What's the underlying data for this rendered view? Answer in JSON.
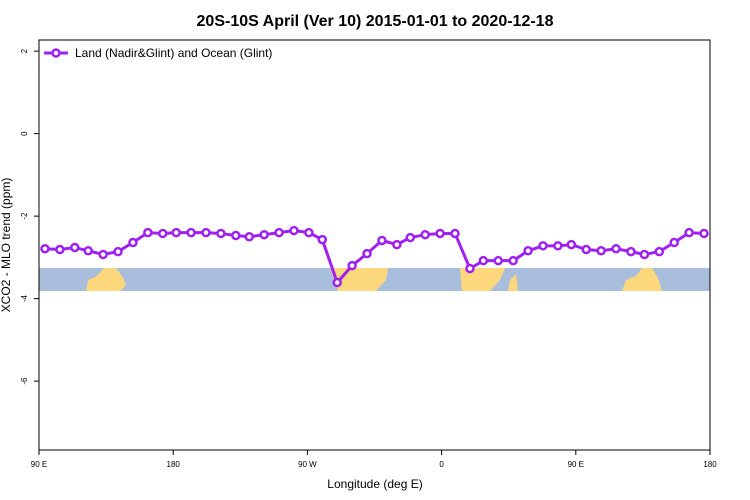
{
  "chart_data": {
    "type": "line",
    "title": "20S-10S April (Ver 10)   2015-01-01 to 2020-12-18",
    "x_label": "Longitude (deg E)",
    "y_label": "XCO2 - MLO trend (ppm)",
    "x": [
      94,
      104,
      114,
      123,
      133,
      143,
      153,
      163,
      173,
      182,
      192,
      202,
      212,
      222,
      231,
      241,
      251,
      261,
      271,
      280,
      290,
      300,
      310,
      320,
      330,
      339,
      349,
      359,
      369,
      379,
      388,
      398,
      408,
      418,
      428,
      438,
      447,
      457,
      467,
      477,
      487,
      496,
      506,
      516,
      526,
      536
    ],
    "series": [
      {
        "name": "Land (Nadir&Glint) and Ocean (Glint)",
        "color": "#a020f0",
        "values": [
          -2.79,
          -2.81,
          -2.76,
          -2.84,
          -2.93,
          -2.86,
          -2.64,
          -2.4,
          -2.42,
          -2.4,
          -2.4,
          -2.4,
          -2.42,
          -2.47,
          -2.5,
          -2.45,
          -2.4,
          -2.35,
          -2.4,
          -2.57,
          -3.61,
          -3.2,
          -2.91,
          -2.59,
          -2.69,
          -2.52,
          -2.45,
          -2.42,
          -2.42,
          -3.27,
          -3.08,
          -3.08,
          -3.08,
          -2.84,
          -2.72,
          -2.72,
          -2.69,
          -2.81,
          -2.84,
          -2.79,
          -2.86,
          -2.93,
          -2.86,
          -2.64,
          -2.4,
          -2.42
        ]
      }
    ],
    "xlim": [
      90,
      540
    ],
    "xticks": [
      {
        "value": 90,
        "label": "90 E"
      },
      {
        "value": 180,
        "label": "180"
      },
      {
        "value": 270,
        "label": "90 W"
      },
      {
        "value": 360,
        "label": "0"
      },
      {
        "value": 450,
        "label": "90 E"
      },
      {
        "value": 540,
        "label": "180"
      }
    ],
    "ylim": [
      -7.67,
      2.27
    ],
    "yticks": [
      2,
      0,
      -2,
      -4,
      -6
    ],
    "legend": "top-left"
  }
}
